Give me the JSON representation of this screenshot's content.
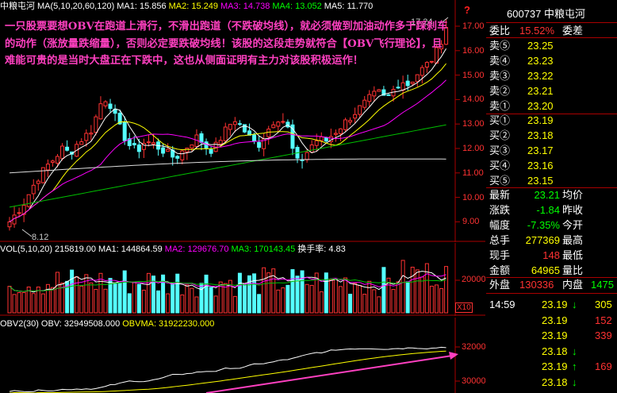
{
  "price_panel": {
    "legend": [
      {
        "text": "中粮屯河",
        "color": "#ffffff"
      },
      {
        "text": "MA(5,10,20,60,120)",
        "color": "#ffffff"
      },
      {
        "text": "MA1: 15.856",
        "color": "#ffffff"
      },
      {
        "text": "MA2: 15.249",
        "color": "#ffff00"
      },
      {
        "text": "MA3: 14.738",
        "color": "#ff00ff"
      },
      {
        "text": "MA4: 13.052",
        "color": "#00ff00"
      },
      {
        "text": "MA5: 11.770",
        "color": "#ffffff"
      }
    ],
    "high_label": "17.24",
    "low_label": "8.12",
    "question_mark": "?",
    "axis_ticks": [
      "17.00",
      "16.00",
      "15.00",
      "14.00",
      "13.00",
      "12.00",
      "11.00",
      "10.00",
      "9.00"
    ],
    "annotation": "一只股票要想OBV在跑道上滑行，不滑出跑道（不跌破均线），就必须做到加油动作多于踩刹车的动作（涨放量跌缩量），否则必定要跌破均线！该股的这段走势就符合【OBV飞行理论】，且难能可贵的是当时大盘正在下跌中，这也从侧面证明有主力对该股积极运作！"
  },
  "volume_panel": {
    "legend": [
      {
        "text": "VOL(5,10,20)",
        "color": "#ffffff"
      },
      {
        "text": "215819.00",
        "color": "#ffffff"
      },
      {
        "text": "MA1: 144864.59",
        "color": "#ffffff"
      },
      {
        "text": "MA2: 129676.70",
        "color": "#ff00ff"
      },
      {
        "text": "MA3: 170143.45",
        "color": "#00ff00"
      },
      {
        "text": "换手率: 4.83",
        "color": "#ffffff"
      }
    ],
    "axis_tick": "20000",
    "scale_label": "X10"
  },
  "obv_panel": {
    "legend": [
      {
        "text": "OBV2(30)",
        "color": "#ffffff"
      },
      {
        "text": "OBV: 32949508.000",
        "color": "#ffffff"
      },
      {
        "text": "OBVMA: 31922230.000",
        "color": "#ffff00"
      }
    ],
    "axis_ticks": [
      "32000",
      "30000"
    ]
  },
  "quote": {
    "code_name": "600737 中粮屯河",
    "webi_label": "委比",
    "webi_value": "15.52%",
    "weicha_label": "委差",
    "asks": [
      {
        "label": "卖⑤",
        "price": "23.25"
      },
      {
        "label": "卖④",
        "price": "23.23"
      },
      {
        "label": "卖③",
        "price": "23.22"
      },
      {
        "label": "卖②",
        "price": "23.21"
      },
      {
        "label": "卖①",
        "price": "23.20"
      }
    ],
    "bids": [
      {
        "label": "买①",
        "price": "23.19"
      },
      {
        "label": "买②",
        "price": "23.18"
      },
      {
        "label": "买③",
        "price": "23.17"
      },
      {
        "label": "买④",
        "price": "23.16"
      },
      {
        "label": "买⑤",
        "price": "23.15"
      }
    ],
    "stats": [
      {
        "label": "最新",
        "value": "23.21",
        "label2": "均价",
        "value_color": "#00ff00"
      },
      {
        "label": "涨跌",
        "value": "-1.84",
        "label2": "昨收",
        "value_color": "#00ff00"
      },
      {
        "label": "幅度",
        "value": "-7.35%",
        "label2": "今开",
        "value_color": "#00ff00"
      },
      {
        "label": "总手",
        "value": "277369",
        "label2": "最高",
        "value_color": "#ffff00"
      },
      {
        "label": "现手",
        "value": "148",
        "label2": "最低",
        "value_color": "#ff3232"
      },
      {
        "label": "金额",
        "value": "64965",
        "label2": "量比",
        "value_color": "#ffff00"
      }
    ],
    "waipan_label": "外盘",
    "waipan_value": "130336",
    "neipan_label": "内盘",
    "neipan_value": "1475",
    "ticks": [
      {
        "time": "14:59",
        "price": "23.19",
        "arrow": "↓",
        "vol": "305",
        "vol_color": "#ffff00"
      },
      {
        "time": "",
        "price": "23.19",
        "arrow": "",
        "vol": "152",
        "vol_color": "#ff3232"
      },
      {
        "time": "",
        "price": "23.19",
        "arrow": "",
        "vol": "339",
        "vol_color": "#ff3232"
      },
      {
        "time": "",
        "price": "23.18",
        "arrow": "↓",
        "vol": "",
        "vol_color": "#ffff00"
      },
      {
        "time": "",
        "price": "23.19",
        "arrow": "↑",
        "vol": "169",
        "vol_color": "#ff3232"
      },
      {
        "time": "",
        "price": "23.18",
        "arrow": "↓",
        "vol": "",
        "vol_color": "#ffff00"
      }
    ]
  }
}
